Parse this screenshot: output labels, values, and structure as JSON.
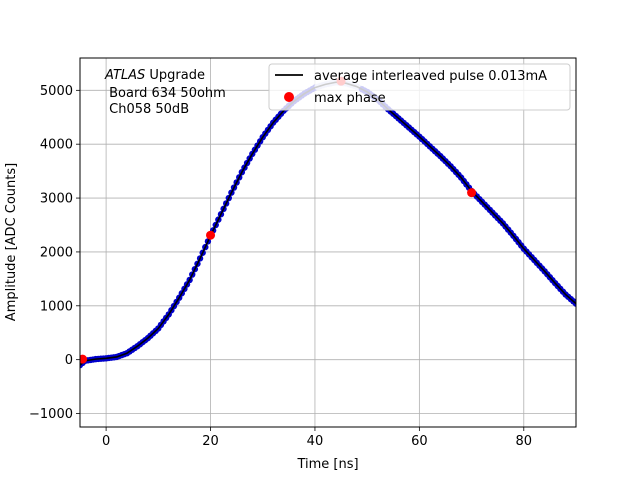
{
  "chart_data": {
    "type": "scatter",
    "title": "",
    "xlabel": "Time [ns]",
    "ylabel": "Amplitude [ADC Counts]",
    "xlim": [
      -5,
      90
    ],
    "ylim": [
      -1250,
      5600
    ],
    "xticks": [
      0,
      20,
      40,
      60,
      80
    ],
    "yticks": [
      -1000,
      0,
      1000,
      2000,
      3000,
      4000,
      5000
    ],
    "xtick_labels": [
      "0",
      "20",
      "40",
      "60",
      "80"
    ],
    "ytick_labels": [
      "−1000",
      "0",
      "1000",
      "2000",
      "3000",
      "4000",
      "5000"
    ],
    "grid": true,
    "legend_position": "top-right",
    "annotation": {
      "line1_italic": "ATLAS",
      "line1_rest": " Upgrade",
      "line2": " Board 634 50ohm",
      "line3": " Ch058 50dB"
    },
    "colors": {
      "samples": "#0000cc",
      "line": "#000000",
      "max_phase": "#ff0000",
      "grid": "#b0b0b0"
    },
    "series": [
      {
        "name": "average interleaved pulse 0.013mA",
        "kind": "line",
        "points": [
          [
            -5,
            -100
          ],
          [
            -4,
            -20
          ],
          [
            -2,
            10
          ],
          [
            0,
            25
          ],
          [
            2,
            50
          ],
          [
            4,
            120
          ],
          [
            6,
            250
          ],
          [
            8,
            400
          ],
          [
            10,
            580
          ],
          [
            12,
            840
          ],
          [
            14,
            1150
          ],
          [
            16,
            1480
          ],
          [
            18,
            1880
          ],
          [
            20,
            2300
          ],
          [
            22,
            2700
          ],
          [
            24,
            3100
          ],
          [
            26,
            3480
          ],
          [
            28,
            3820
          ],
          [
            30,
            4130
          ],
          [
            32,
            4400
          ],
          [
            34,
            4620
          ],
          [
            36,
            4800
          ],
          [
            38,
            4940
          ],
          [
            40,
            5050
          ],
          [
            42,
            5110
          ],
          [
            44,
            5150
          ],
          [
            46,
            5130
          ],
          [
            48,
            5070
          ],
          [
            50,
            4970
          ],
          [
            52,
            4830
          ],
          [
            54,
            4650
          ],
          [
            56,
            4480
          ],
          [
            58,
            4310
          ],
          [
            60,
            4140
          ],
          [
            62,
            3960
          ],
          [
            64,
            3780
          ],
          [
            66,
            3590
          ],
          [
            68,
            3380
          ],
          [
            70,
            3130
          ],
          [
            72,
            2930
          ],
          [
            74,
            2730
          ],
          [
            76,
            2530
          ],
          [
            78,
            2300
          ],
          [
            80,
            2060
          ],
          [
            82,
            1850
          ],
          [
            84,
            1640
          ],
          [
            86,
            1420
          ],
          [
            88,
            1210
          ],
          [
            90,
            1040
          ]
        ]
      },
      {
        "name": "max phase",
        "kind": "scatter",
        "points": [
          [
            -4.5,
            10
          ],
          [
            20,
            2310
          ],
          [
            45,
            5170
          ],
          [
            70,
            3100
          ]
        ]
      }
    ]
  }
}
